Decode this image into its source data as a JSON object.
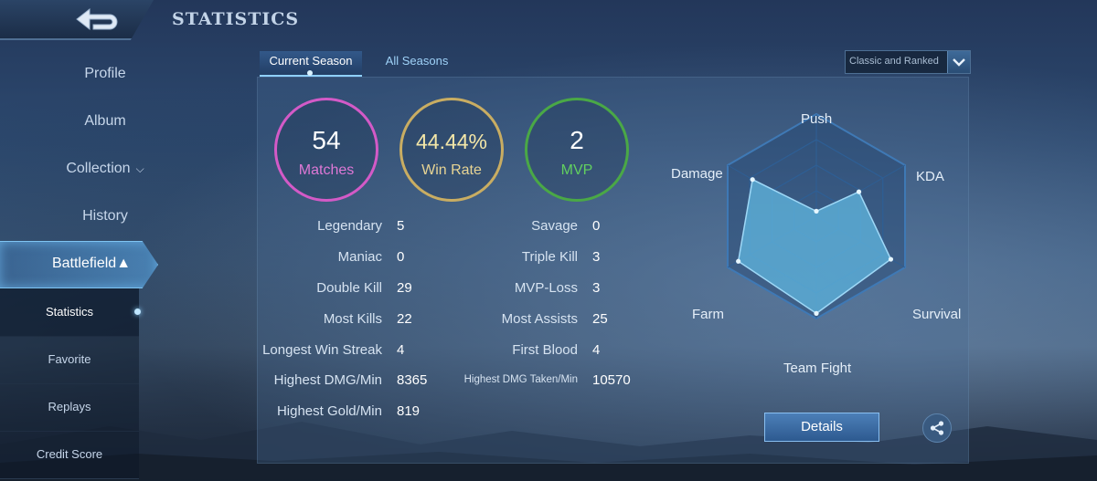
{
  "header": {
    "title": "STATISTICS"
  },
  "sidebar": {
    "items": [
      {
        "label": "Profile"
      },
      {
        "label": "Album"
      },
      {
        "label": "Collection"
      },
      {
        "label": "History"
      },
      {
        "label": "Battlefield"
      }
    ],
    "sub_items": [
      {
        "label": "Statistics",
        "active": true
      },
      {
        "label": "Favorite"
      },
      {
        "label": "Replays"
      },
      {
        "label": "Credit Score"
      }
    ]
  },
  "tabs": [
    {
      "label": "Current Season"
    },
    {
      "label": "All Seasons"
    }
  ],
  "mode_select": {
    "selected": "Classic and Ranked"
  },
  "summary": {
    "matches": {
      "value": "54",
      "label": "Matches"
    },
    "win_rate": {
      "value": "44.44%",
      "label": "Win Rate"
    },
    "mvp": {
      "value": "2",
      "label": "MVP"
    }
  },
  "stats_left": [
    {
      "label": "Legendary",
      "value": "5"
    },
    {
      "label": "Maniac",
      "value": "0"
    },
    {
      "label": "Double Kill",
      "value": "29"
    },
    {
      "label": "Most Kills",
      "value": "22"
    },
    {
      "label": "Longest Win Streak",
      "value": "4"
    },
    {
      "label": "Highest DMG/Min",
      "value": "8365"
    },
    {
      "label": "Highest Gold/Min",
      "value": "819"
    }
  ],
  "stats_right": [
    {
      "label": "Savage",
      "value": "0"
    },
    {
      "label": "Triple Kill",
      "value": "3"
    },
    {
      "label": "MVP-Loss",
      "value": "3"
    },
    {
      "label": "Most Assists",
      "value": "25"
    },
    {
      "label": "First Blood",
      "value": "4"
    },
    {
      "label": "Highest DMG Taken/Min",
      "value": "10570"
    }
  ],
  "radar": {
    "axes": [
      "Push",
      "KDA",
      "Survival",
      "Team Fight",
      "Farm",
      "Damage"
    ],
    "values": [
      0.05,
      0.48,
      0.84,
      0.95,
      0.88,
      0.72
    ],
    "fill_color": "#5fb3dc",
    "stroke_color": "#9ed8f7"
  },
  "actions": {
    "details_label": "Details",
    "share_icon": "share-icon"
  },
  "colors": {
    "matches": "#d35ac7",
    "win_rate": "#c9ad62",
    "mvp": "#4aa846"
  }
}
